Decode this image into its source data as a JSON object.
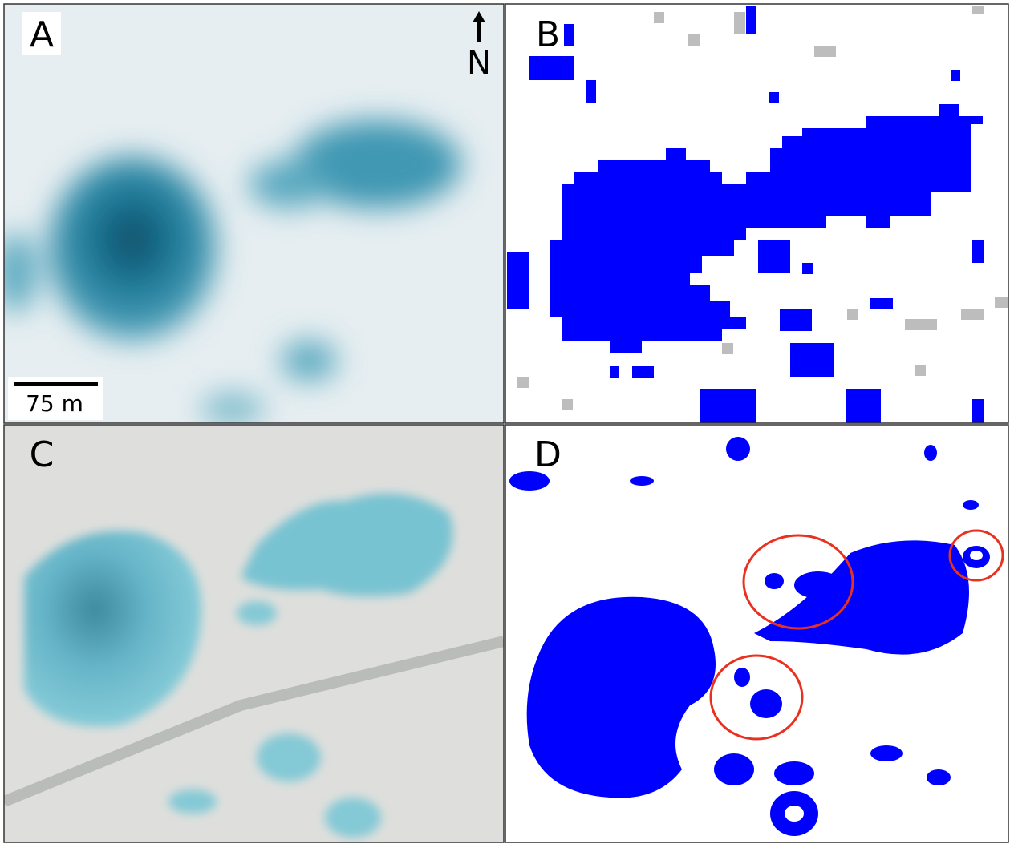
{
  "panels": [
    {
      "label": "A",
      "north": "N",
      "scale": "75 m"
    },
    {
      "label": "B"
    },
    {
      "label": "C"
    },
    {
      "label": "D"
    }
  ]
}
